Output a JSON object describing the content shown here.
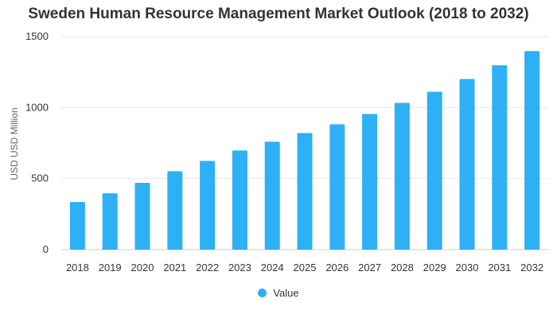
{
  "chart_data": {
    "type": "bar",
    "title": "Sweden Human Resource Management Market Outlook (2018 to 2032)",
    "xlabel": "",
    "ylabel": "USD USD Million",
    "categories": [
      "2018",
      "2019",
      "2020",
      "2021",
      "2022",
      "2023",
      "2024",
      "2025",
      "2026",
      "2027",
      "2028",
      "2029",
      "2030",
      "2031",
      "2032"
    ],
    "series": [
      {
        "name": "Value",
        "values": [
          335,
          397,
          470,
          552,
          625,
          698,
          760,
          821,
          882,
          955,
          1033,
          1112,
          1201,
          1298,
          1398
        ]
      }
    ],
    "ylim": [
      0,
      1500
    ],
    "yticks": [
      0,
      500,
      1000,
      1500
    ],
    "grid": true,
    "legend": "bottom-center",
    "color": "#2DB0F5"
  }
}
